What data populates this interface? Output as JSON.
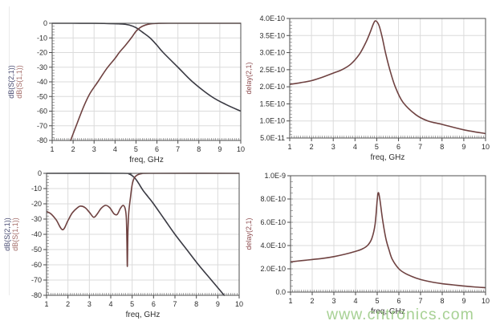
{
  "watermark": {
    "text": "www.cntronics.com",
    "color": "#9ccb86"
  },
  "colors": {
    "grid": "#dbdbdb",
    "axis_border": "#4f4f4f",
    "tick": "#4a4a4a",
    "tick_label": "#2b2b2b",
    "xlabel_text": "#2f2f2f",
    "trace_dark": "#3a3a43",
    "trace_maroon": "#6f4241",
    "label_navy": "#474a71",
    "label_red": "#a26a66",
    "label_maroon": "#8f4f52"
  },
  "chart_data": [
    {
      "type": "line",
      "position": "top-left",
      "title": "",
      "xlabel": "freq, GHz",
      "ylabels": [
        {
          "text": "dB(S(2,1))",
          "color": "#474a71"
        },
        {
          "text": "dB(S(1,1))",
          "color": "#a26a66"
        }
      ],
      "xlim": [
        1,
        10
      ],
      "ylim": [
        -80,
        0
      ],
      "xticks": [
        1,
        2,
        3,
        4,
        5,
        6,
        7,
        8,
        9,
        10
      ],
      "yticks": [
        {
          "v": 0,
          "label": "0"
        },
        {
          "v": -10,
          "label": "-10"
        },
        {
          "v": -20,
          "label": "-20"
        },
        {
          "v": -30,
          "label": "-30"
        },
        {
          "v": -40,
          "label": "-40"
        },
        {
          "v": -50,
          "label": "-50"
        },
        {
          "v": -60,
          "label": "-60"
        },
        {
          "v": -70,
          "label": "-70"
        },
        {
          "v": -80,
          "label": "-80"
        }
      ],
      "xminor": 0.1,
      "yminor": 2,
      "grid": true,
      "series": [
        {
          "name": "dB(S(2,1))",
          "color": "#3a3a43",
          "points": [
            [
              1,
              0
            ],
            [
              2,
              0
            ],
            [
              3,
              -0.05
            ],
            [
              3.6,
              -0.15
            ],
            [
              4.1,
              -0.35
            ],
            [
              4.4,
              -0.6
            ],
            [
              4.7,
              -1.3
            ],
            [
              5.0,
              -3.0
            ],
            [
              5.3,
              -6.0
            ],
            [
              5.67,
              -10
            ],
            [
              6.0,
              -15
            ],
            [
              6.3,
              -20
            ],
            [
              7.0,
              -30
            ],
            [
              7.7,
              -40
            ],
            [
              8.6,
              -50
            ],
            [
              9.3,
              -55.5
            ],
            [
              10,
              -60
            ]
          ]
        },
        {
          "name": "dB(S(1,1))",
          "color": "#6f4241",
          "points": [
            [
              1.88,
              -80
            ],
            [
              2.2,
              -68
            ],
            [
              2.5,
              -57
            ],
            [
              2.8,
              -48
            ],
            [
              3.18,
              -40
            ],
            [
              3.6,
              -31
            ],
            [
              4.0,
              -24
            ],
            [
              4.2,
              -20
            ],
            [
              4.5,
              -15
            ],
            [
              4.8,
              -9.5
            ],
            [
              5.0,
              -5.5
            ],
            [
              5.2,
              -2.9
            ],
            [
              5.45,
              -1.2
            ],
            [
              5.7,
              -0.4
            ],
            [
              6.1,
              -0.05
            ],
            [
              7,
              0
            ],
            [
              10,
              0
            ]
          ]
        }
      ]
    },
    {
      "type": "line",
      "position": "top-right",
      "title": "",
      "xlabel": "freq, GHz",
      "ylabels": [
        {
          "text": "delay(2,1)",
          "color": "#8f4f52"
        }
      ],
      "xlim": [
        1,
        10
      ],
      "ylim": [
        5e-11,
        4e-10
      ],
      "xticks": [
        1,
        2,
        3,
        4,
        5,
        6,
        7,
        8,
        9,
        10
      ],
      "yticks": [
        {
          "v": 4e-10,
          "label": "4.0E-10"
        },
        {
          "v": 3.5e-10,
          "label": "3.5E-10"
        },
        {
          "v": 3e-10,
          "label": "3.0E-10"
        },
        {
          "v": 2.5e-10,
          "label": "2.5E-10"
        },
        {
          "v": 2e-10,
          "label": "2.0E-10"
        },
        {
          "v": 1.5e-10,
          "label": "1.5E-10"
        },
        {
          "v": 1e-10,
          "label": "1.0E-10"
        },
        {
          "v": 5e-11,
          "label": "5.0E-11"
        }
      ],
      "xminor": 0.1,
      "yminor": 1e-11,
      "grid": true,
      "series": [
        {
          "name": "delay(2,1)",
          "color": "#6f4241",
          "points": [
            [
              1,
              2.07e-10
            ],
            [
              1.5,
              2.12e-10
            ],
            [
              2,
              2.18e-10
            ],
            [
              2.5,
              2.28e-10
            ],
            [
              3,
              2.4e-10
            ],
            [
              3.4,
              2.5e-10
            ],
            [
              3.8,
              2.66e-10
            ],
            [
              4.2,
              2.95e-10
            ],
            [
              4.5,
              3.3e-10
            ],
            [
              4.7,
              3.6e-10
            ],
            [
              4.85,
              3.85e-10
            ],
            [
              4.95,
              3.93e-10
            ],
            [
              5.1,
              3.8e-10
            ],
            [
              5.25,
              3.45e-10
            ],
            [
              5.4,
              3e-10
            ],
            [
              5.6,
              2.5e-10
            ],
            [
              5.85,
              2e-10
            ],
            [
              6.2,
              1.55e-10
            ],
            [
              6.8,
              1.18e-10
            ],
            [
              7.35,
              1e-10
            ],
            [
              8,
              9e-11
            ],
            [
              9,
              7.4e-11
            ],
            [
              10,
              6.3e-11
            ]
          ]
        }
      ]
    },
    {
      "type": "line",
      "position": "bottom-left",
      "title": "",
      "xlabel": "freq, GHz",
      "ylabels": [
        {
          "text": "dB(S(2,1))",
          "color": "#474a71"
        },
        {
          "text": "dB(S(1,1))",
          "color": "#a26a66"
        }
      ],
      "xlim": [
        1,
        10
      ],
      "ylim": [
        -80,
        0
      ],
      "xticks": [
        1,
        2,
        3,
        4,
        5,
        6,
        7,
        8,
        9,
        10
      ],
      "yticks": [
        {
          "v": 0,
          "label": "0"
        },
        {
          "v": -10,
          "label": "-10"
        },
        {
          "v": -20,
          "label": "-20"
        },
        {
          "v": -30,
          "label": "-30"
        },
        {
          "v": -40,
          "label": "-40"
        },
        {
          "v": -50,
          "label": "-50"
        },
        {
          "v": -60,
          "label": "-60"
        },
        {
          "v": -70,
          "label": "-70"
        },
        {
          "v": -80,
          "label": "-80"
        }
      ],
      "xminor": 0.1,
      "yminor": 2,
      "grid": true,
      "series": [
        {
          "name": "dB(S(2,1))",
          "color": "#3a3a43",
          "points": [
            [
              1,
              0
            ],
            [
              4.6,
              0
            ],
            [
              4.85,
              -0.4
            ],
            [
              5.0,
              -1.5
            ],
            [
              5.15,
              -3.5
            ],
            [
              5.3,
              -6.5
            ],
            [
              5.5,
              -11
            ],
            [
              5.75,
              -15.5
            ],
            [
              6.0,
              -20
            ],
            [
              6.5,
              -30
            ],
            [
              7.0,
              -40
            ],
            [
              7.55,
              -50
            ],
            [
              8.1,
              -60
            ],
            [
              8.7,
              -70
            ],
            [
              9.3,
              -80
            ]
          ]
        },
        {
          "name": "dB(S(1,1))",
          "color": "#6f4241",
          "points": [
            [
              1,
              -25
            ],
            [
              1.2,
              -26.5
            ],
            [
              1.45,
              -30.5
            ],
            [
              1.75,
              -37
            ],
            [
              2.0,
              -31
            ],
            [
              2.2,
              -26
            ],
            [
              2.45,
              -22.5
            ],
            [
              2.6,
              -21.5
            ],
            [
              2.8,
              -22.5
            ],
            [
              3.0,
              -25.5
            ],
            [
              3.2,
              -28.8
            ],
            [
              3.35,
              -27
            ],
            [
              3.55,
              -23
            ],
            [
              3.75,
              -21
            ],
            [
              3.95,
              -22.5
            ],
            [
              4.15,
              -26.5
            ],
            [
              4.3,
              -27
            ],
            [
              4.45,
              -23
            ],
            [
              4.58,
              -21
            ],
            [
              4.68,
              -23.5
            ],
            [
              4.73,
              -30
            ],
            [
              4.755,
              -45
            ],
            [
              4.775,
              -61
            ],
            [
              4.8,
              -40
            ],
            [
              4.84,
              -26
            ],
            [
              4.92,
              -16
            ],
            [
              5.0,
              -7.5
            ],
            [
              5.1,
              -3
            ],
            [
              5.25,
              -1
            ],
            [
              5.45,
              -0.2
            ],
            [
              5.8,
              0
            ],
            [
              10,
              0
            ]
          ]
        }
      ]
    },
    {
      "type": "line",
      "position": "bottom-right",
      "title": "",
      "xlabel": "freq, GHz",
      "ylabels": [
        {
          "text": "delay(2,1)",
          "color": "#8f4f52"
        }
      ],
      "xlim": [
        1,
        10
      ],
      "ylim": [
        0,
        1e-09
      ],
      "xticks": [
        1,
        2,
        3,
        4,
        5,
        6,
        7,
        8,
        9,
        10
      ],
      "yticks": [
        {
          "v": 1e-09,
          "label": "1.0E-9"
        },
        {
          "v": 8e-10,
          "label": "8.0E-10"
        },
        {
          "v": 6e-10,
          "label": "6.0E-10"
        },
        {
          "v": 4e-10,
          "label": "4.0E-10"
        },
        {
          "v": 2e-10,
          "label": "2.0E-10"
        },
        {
          "v": 0,
          "label": "0.0"
        }
      ],
      "xminor": 0.1,
      "yminor": 5e-11,
      "grid": true,
      "series": [
        {
          "name": "delay(2,1)",
          "color": "#6f4241",
          "points": [
            [
              1,
              2.6e-10
            ],
            [
              1.5,
              2.7e-10
            ],
            [
              2,
              2.8e-10
            ],
            [
              2.5,
              2.9e-10
            ],
            [
              3,
              3.05e-10
            ],
            [
              3.5,
              3.25e-10
            ],
            [
              4,
              3.5e-10
            ],
            [
              4.3,
              3.7e-10
            ],
            [
              4.55,
              4e-10
            ],
            [
              4.75,
              4.6e-10
            ],
            [
              4.9,
              5.8e-10
            ],
            [
              5.0,
              7.9e-10
            ],
            [
              5.05,
              8.55e-10
            ],
            [
              5.12,
              8e-10
            ],
            [
              5.25,
              6.2e-10
            ],
            [
              5.4,
              4.6e-10
            ],
            [
              5.55,
              3.6e-10
            ],
            [
              5.7,
              2.8e-10
            ],
            [
              6.0,
              2e-10
            ],
            [
              6.3,
              1.6e-10
            ],
            [
              6.8,
              1.2e-10
            ],
            [
              7.3,
              9.5e-11
            ],
            [
              8,
              7.2e-11
            ],
            [
              8.5,
              6.2e-11
            ],
            [
              9,
              5.2e-11
            ],
            [
              9.5,
              4.4e-11
            ],
            [
              10,
              3.8e-11
            ]
          ]
        }
      ]
    }
  ]
}
